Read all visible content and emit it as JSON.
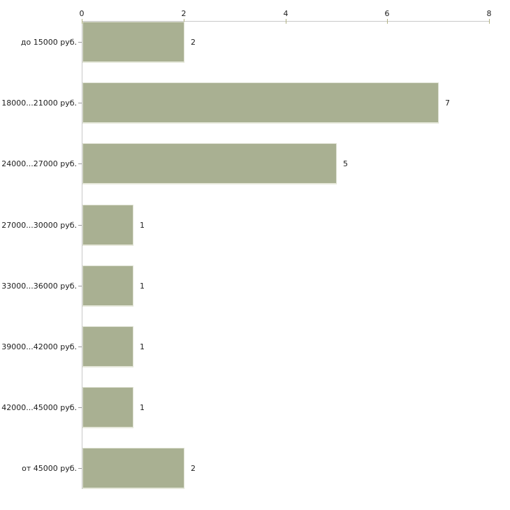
{
  "chart_data": {
    "type": "bar",
    "orientation": "horizontal",
    "title": "",
    "xlabel": "",
    "ylabel": "",
    "categories": [
      "до 15000 руб.",
      "18000...21000 руб.",
      "24000...27000 руб.",
      "27000...30000 руб.",
      "33000...36000 руб.",
      "39000...42000 руб.",
      "42000...45000 руб.",
      "от 45000 руб."
    ],
    "values": [
      2,
      7,
      5,
      1,
      1,
      1,
      1,
      2
    ],
    "value_labels": [
      "2",
      "7",
      "5",
      "1",
      "1",
      "1",
      "1",
      "2"
    ],
    "x_ticks": [
      0,
      2,
      4,
      6,
      8
    ],
    "xlim": [
      0,
      8
    ],
    "grid": false,
    "legend": null,
    "colors": {
      "bar_fill": "#a9b092",
      "bar_edge_light": "#e3e5d8",
      "axis_line": "#c9c9c9",
      "x_tick_mark": "#b2b284",
      "y_tick_mark": "#9a9a9a",
      "text": "#1c1c1c",
      "background": "#ffffff"
    }
  }
}
